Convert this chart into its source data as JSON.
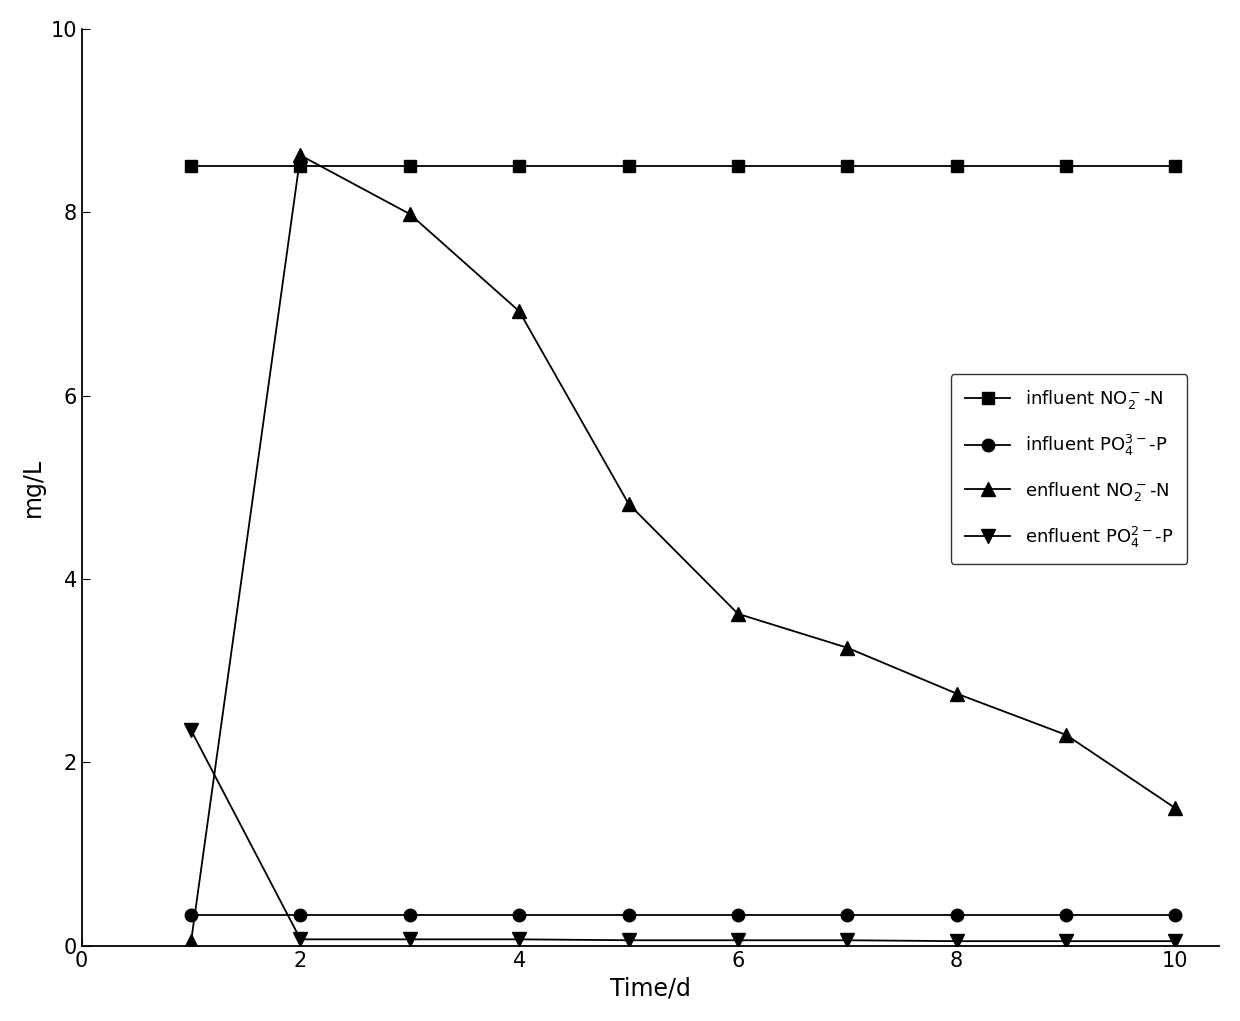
{
  "time": [
    1,
    2,
    3,
    4,
    5,
    6,
    7,
    8,
    9,
    10
  ],
  "influent_NO2_N": [
    8.5,
    8.5,
    8.5,
    8.5,
    8.5,
    8.5,
    8.5,
    8.5,
    8.5,
    8.5
  ],
  "influent_PO4_P": [
    0.33,
    0.33,
    0.33,
    0.33,
    0.33,
    0.33,
    0.33,
    0.33,
    0.33,
    0.33
  ],
  "effluent_NO2_N": [
    0.05,
    8.62,
    7.98,
    6.92,
    4.82,
    3.62,
    3.25,
    2.75,
    2.3,
    1.5
  ],
  "effluent_PO4_P": [
    2.35,
    0.07,
    0.07,
    0.07,
    0.06,
    0.06,
    0.06,
    0.05,
    0.05,
    0.05
  ],
  "color": "#000000",
  "xlabel": "Time/d",
  "ylabel": "mg/L",
  "xlim": [
    0,
    10.4
  ],
  "ylim": [
    0,
    10
  ],
  "xtick_major": [
    0,
    2,
    4,
    6,
    8,
    10
  ],
  "xtick_minor": [
    1,
    3,
    5,
    7,
    9
  ],
  "yticks": [
    0,
    2,
    4,
    6,
    8,
    10
  ],
  "figsize": [
    12.4,
    10.21
  ],
  "dpi": 100
}
